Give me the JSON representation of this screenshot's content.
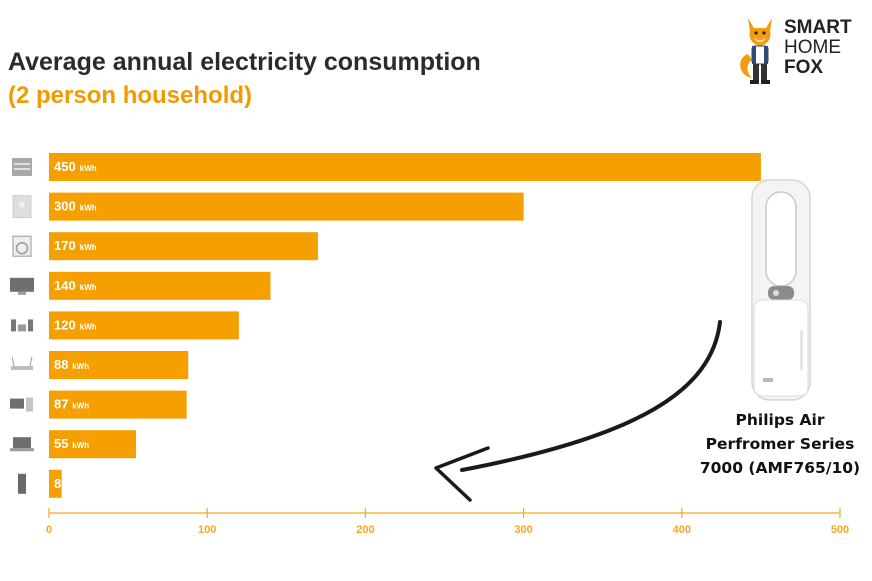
{
  "chart_data": {
    "type": "bar",
    "orientation": "horizontal",
    "title": "Average annual electricity consumption",
    "subtitle": "(2 person household)",
    "categories": [
      "",
      "",
      "",
      "",
      "",
      "",
      "",
      "",
      ""
    ],
    "category_icons": [
      "stove-icon",
      "fridge-icon",
      "washing-machine-icon",
      "tv-icon",
      "stereo-icon",
      "router-icon",
      "desktop-pc-icon",
      "laptop-icon",
      "air-purifier-icon"
    ],
    "values": [
      450,
      300,
      170,
      140,
      120,
      88,
      87,
      55,
      8
    ],
    "value_labels": [
      "450",
      "300",
      "170",
      "140",
      "120",
      "88",
      "87",
      "55",
      "8"
    ],
    "unit": "kWh",
    "xlim": [
      0,
      500
    ],
    "xticks": [
      "0",
      "100",
      "200",
      "300",
      "400",
      "500"
    ],
    "bar_color": "#f59f00",
    "axis_color": "#f5a623",
    "grid": false
  },
  "brand": {
    "line1": "SMART",
    "line2": "HOME",
    "line3": "FOX",
    "logo_icon": "fox-mascot-icon"
  },
  "product": {
    "label": "Philips Air Perfromer Series 7000 (AMF765/10)",
    "image_icon": "air-purifier-fan-icon",
    "arrow_icon": "curved-arrow-icon"
  },
  "colors": {
    "title": "#2b2b2b",
    "subtitle": "#f29a00",
    "brand_orange": "#f39c12"
  }
}
